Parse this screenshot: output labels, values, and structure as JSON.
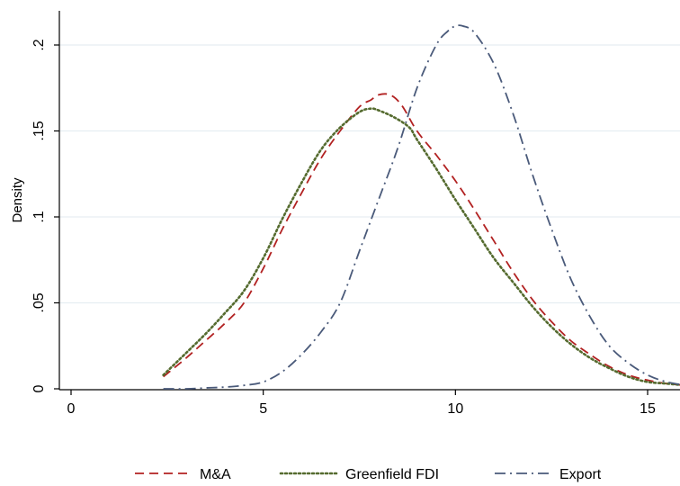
{
  "chart_data": {
    "type": "line",
    "title": "",
    "xlabel": "",
    "ylabel": "Density",
    "xlim": [
      0,
      16
    ],
    "ylim": [
      0,
      0.22
    ],
    "x_ticks": [
      0,
      5,
      10,
      15
    ],
    "x_tick_labels": [
      "0",
      "5",
      "10",
      "15"
    ],
    "y_ticks": [
      0,
      0.05,
      0.1,
      0.15,
      0.2
    ],
    "y_tick_labels": [
      "0",
      ".05",
      ".1",
      ".15",
      ".2"
    ],
    "grid": "horizontal",
    "legend_position": "bottom",
    "series": [
      {
        "name": "M&A",
        "color": "#b22222",
        "dash": "dashed",
        "x": [
          2.4,
          3.0,
          3.5,
          4.0,
          4.5,
          5.0,
          5.5,
          6.0,
          6.5,
          7.0,
          7.5,
          7.8,
          8.0,
          8.3,
          8.6,
          9.0,
          9.5,
          10.0,
          10.5,
          11.0,
          11.5,
          12.0,
          12.5,
          13.0,
          13.5,
          14.0,
          14.5,
          15.0,
          15.5,
          16.0
        ],
        "y": [
          0.007,
          0.018,
          0.028,
          0.038,
          0.05,
          0.07,
          0.093,
          0.114,
          0.134,
          0.15,
          0.164,
          0.168,
          0.171,
          0.171,
          0.165,
          0.15,
          0.136,
          0.121,
          0.104,
          0.086,
          0.068,
          0.052,
          0.039,
          0.028,
          0.02,
          0.013,
          0.008,
          0.005,
          0.003,
          0.002
        ]
      },
      {
        "name": "Greenfield FDI",
        "color": "#556b2f",
        "dash": "dotted",
        "x": [
          2.4,
          3.0,
          3.5,
          4.0,
          4.5,
          5.0,
          5.5,
          6.0,
          6.5,
          7.0,
          7.5,
          7.8,
          8.0,
          8.4,
          8.8,
          9.0,
          9.5,
          10.0,
          10.5,
          11.0,
          11.5,
          12.0,
          12.5,
          13.0,
          13.5,
          14.0,
          14.5,
          15.0,
          15.5,
          16.0
        ],
        "y": [
          0.008,
          0.021,
          0.032,
          0.044,
          0.057,
          0.076,
          0.099,
          0.12,
          0.139,
          0.152,
          0.161,
          0.163,
          0.162,
          0.158,
          0.152,
          0.145,
          0.128,
          0.11,
          0.093,
          0.076,
          0.062,
          0.048,
          0.036,
          0.026,
          0.018,
          0.012,
          0.007,
          0.004,
          0.003,
          0.002
        ]
      },
      {
        "name": "Export",
        "color": "#4a5a7a",
        "dash": "dashdot",
        "x": [
          2.4,
          3.0,
          3.5,
          4.0,
          4.5,
          5.0,
          5.5,
          6.0,
          6.5,
          7.0,
          7.5,
          8.0,
          8.5,
          9.0,
          9.5,
          9.8,
          10.0,
          10.2,
          10.5,
          11.0,
          11.5,
          12.0,
          12.5,
          13.0,
          13.5,
          14.0,
          14.5,
          15.0,
          15.5,
          16.0
        ],
        "y": [
          0.0,
          0.0,
          0.0005,
          0.001,
          0.002,
          0.004,
          0.01,
          0.02,
          0.033,
          0.05,
          0.08,
          0.11,
          0.14,
          0.175,
          0.2,
          0.208,
          0.211,
          0.211,
          0.207,
          0.189,
          0.16,
          0.125,
          0.093,
          0.064,
          0.042,
          0.025,
          0.015,
          0.008,
          0.004,
          0.002
        ]
      }
    ]
  }
}
